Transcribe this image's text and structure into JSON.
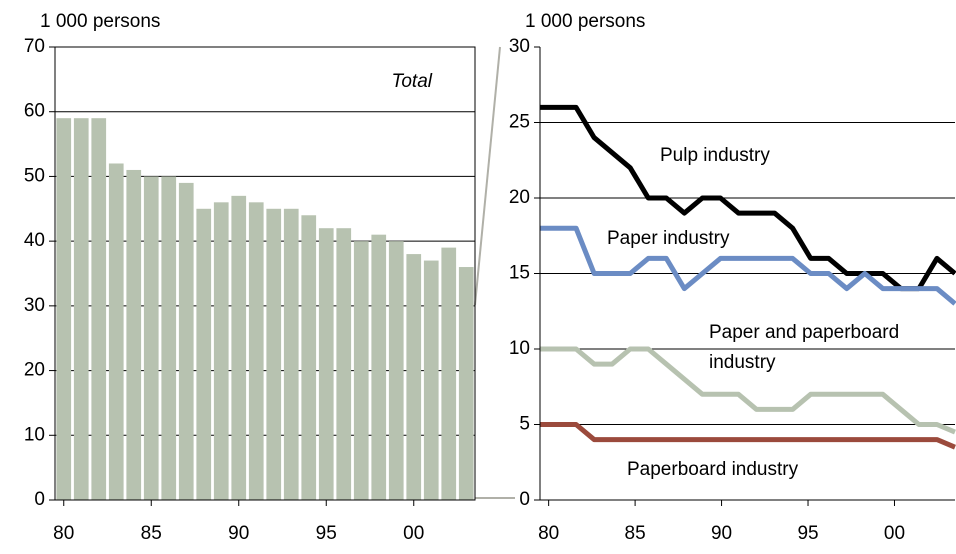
{
  "chart_data": [
    {
      "type": "bar",
      "y_label": "1 000 persons",
      "annotation": "Total",
      "categories": [
        "80",
        null,
        null,
        null,
        null,
        "85",
        null,
        null,
        null,
        null,
        "90",
        null,
        null,
        null,
        null,
        "95",
        null,
        null,
        null,
        null,
        "00",
        null,
        null,
        null
      ],
      "values": [
        59,
        59,
        59,
        52,
        51,
        50,
        50,
        49,
        45,
        46,
        47,
        46,
        45,
        45,
        44,
        42,
        42,
        40,
        41,
        40,
        38,
        37,
        39,
        36
      ],
      "color": "#b7c2b0",
      "ylim": [
        0,
        70
      ],
      "yticks": [
        0,
        10,
        20,
        30,
        40,
        50,
        60,
        70
      ],
      "grid": true
    },
    {
      "type": "line",
      "y_label": "1 000 persons",
      "categories": [
        "80",
        null,
        null,
        null,
        null,
        "85",
        null,
        null,
        null,
        null,
        "90",
        null,
        null,
        null,
        null,
        "95",
        null,
        null,
        null,
        null,
        "00",
        null,
        null,
        null
      ],
      "series": [
        {
          "name": "Pulp industry",
          "color": "#000000",
          "values": [
            26,
            26,
            26,
            24,
            23,
            22,
            20,
            20,
            19,
            20,
            20,
            19,
            19,
            19,
            18,
            16,
            16,
            15,
            15,
            15,
            14,
            14,
            16,
            15
          ]
        },
        {
          "name": "Paper industry",
          "color": "#6b8cc4",
          "values": [
            18,
            18,
            18,
            15,
            15,
            15,
            16,
            16,
            14,
            15,
            16,
            16,
            16,
            16,
            16,
            15,
            15,
            14,
            15,
            14,
            14,
            14,
            14,
            13
          ]
        },
        {
          "name": "Paper and paperboard industry",
          "color": "#b7c2b0",
          "values": [
            10,
            10,
            10,
            9,
            9,
            10,
            10,
            9,
            8,
            7,
            7,
            7,
            6,
            6,
            6,
            7,
            7,
            7,
            7,
            7,
            6,
            5,
            5,
            4.5
          ]
        },
        {
          "name": "Paperboard industry",
          "color": "#9b4a3c",
          "values": [
            5,
            5,
            5,
            4,
            4,
            4,
            4,
            4,
            4,
            4,
            4,
            4,
            4,
            4,
            4,
            4,
            4,
            4,
            4,
            4,
            4,
            4,
            4,
            3.5
          ]
        }
      ],
      "ylim": [
        0,
        30
      ],
      "yticks": [
        0,
        5,
        10,
        15,
        20,
        25,
        30
      ],
      "grid": true
    }
  ]
}
